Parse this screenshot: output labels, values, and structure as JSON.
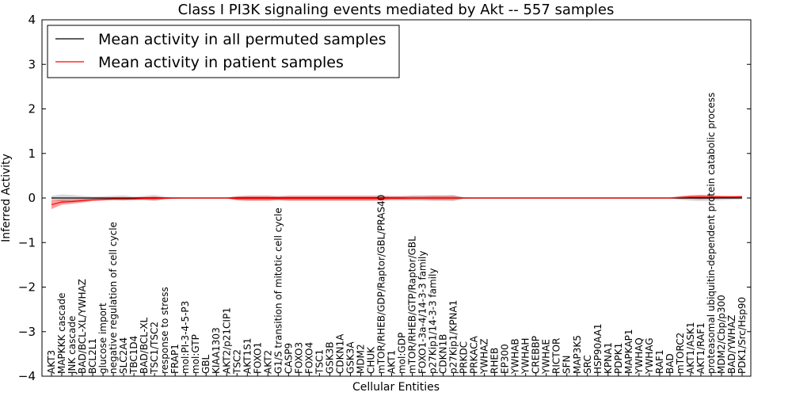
{
  "chart_data": {
    "type": "line",
    "title": "Class I PI3K signaling events mediated by Akt -- 557 samples",
    "xlabel": "Cellular Entities",
    "ylabel": "Inferred Activity",
    "ylim": [
      -4,
      4
    ],
    "yticks": [
      -4,
      -3,
      -2,
      -1,
      0,
      1,
      2,
      3,
      4
    ],
    "grid": false,
    "legend_position": "top-left",
    "categories": [
      "AKT3",
      "MAPKKK cascade",
      "JNK cascade",
      "BAD/BCL-XL/YWHAZ",
      "BCL2L1",
      "glucose import",
      "negative regulation of cell cycle",
      "SLC2A4",
      "TBC1D4",
      "BAD/BCL-XL",
      "TSC1/TSC2",
      "response to stress",
      "FRAP1",
      "mol:PI-3-4-5-P3",
      "mol:GTP",
      "GBL",
      "KIAA1303",
      "AKT2/p21CIP1",
      "TSC2",
      "AKT1S1",
      "FOXO1",
      "AKT2",
      "G1/S transition of mitotic cell cycle",
      "CASP9",
      "FOXO3",
      "FOXO4",
      "TSC1",
      "GSK3B",
      "CDKN1A",
      "GSK3A",
      "MDM2",
      "CHUK",
      "mTOR/RHEB/GDP/Raptor/GBL/PRAS40",
      "AKT1",
      "mol:GDP",
      "mTOR/RHEB/GTP/Raptor/GBL",
      "FOXO1-3a-4/14-3-3 family",
      "p27Kip1/14-3-3 family",
      "CDKN1B",
      "p27Kip1/KPNA1",
      "PRKDC",
      "PRKACA",
      "YWHAZ",
      "RHEB",
      "EP300",
      "YWHAB",
      "YWHAH",
      "CREBBP",
      "YWHAE",
      "RICTOR",
      "SFN",
      "MAP3K5",
      "SRC",
      "HSP90AA1",
      "KPNA1",
      "PDPK1",
      "MAPKAP1",
      "YWHAQ",
      "YWHAG",
      "RAF1",
      "BAD",
      "mTORC2",
      "AKT1/ASK1",
      "AKT1/RAF1",
      "proteasomal ubiquitin-dependent protein catabolic process",
      "MDM2/Cbp/p300",
      "BAD/YWHAZ",
      "PDK1/Src/Hsp90"
    ],
    "series": [
      {
        "name": "Mean activity in all permuted samples",
        "color": "#000000",
        "values": [
          0,
          0,
          0,
          0,
          0,
          0,
          0,
          0,
          0,
          0,
          0,
          0,
          0,
          0,
          0,
          0,
          0,
          0,
          0,
          0,
          0,
          0,
          0,
          0,
          0,
          0,
          0,
          0,
          0,
          0,
          0,
          0,
          0,
          0,
          0,
          0,
          0,
          0,
          0,
          0,
          0,
          0,
          0,
          0,
          0,
          0,
          0,
          0,
          0,
          0,
          0,
          0,
          0,
          0,
          0,
          0,
          0,
          0,
          0,
          0,
          0,
          0,
          0,
          0,
          0,
          0,
          0,
          0
        ],
        "band": [
          0.05,
          0.08,
          0.07,
          0.05,
          0.03,
          0.04,
          0.05,
          0.06,
          0.03,
          0.05,
          0.07,
          0.03,
          0.02,
          0.01,
          0.01,
          0.01,
          0.01,
          0.01,
          0.05,
          0.06,
          0.06,
          0.06,
          0.05,
          0.06,
          0.06,
          0.06,
          0.06,
          0.06,
          0.06,
          0.06,
          0.06,
          0.06,
          0.06,
          0.05,
          0.05,
          0.06,
          0.06,
          0.06,
          0.06,
          0.07,
          0.02,
          0.01,
          0.01,
          0.01,
          0.01,
          0.01,
          0.01,
          0.01,
          0.01,
          0.01,
          0.01,
          0.01,
          0.01,
          0.01,
          0.01,
          0.01,
          0.01,
          0.01,
          0.01,
          0.01,
          0.01,
          0.04,
          0.06,
          0.07,
          0.06,
          0.05,
          0.04,
          0.03
        ]
      },
      {
        "name": "Mean activity in patient samples",
        "color": "#ff0000",
        "values": [
          -0.15,
          -0.09,
          -0.08,
          -0.06,
          -0.04,
          -0.03,
          -0.02,
          -0.02,
          -0.02,
          -0.01,
          -0.01,
          -0.005,
          0,
          0,
          0,
          0,
          0,
          0,
          -0.01,
          -0.01,
          -0.01,
          -0.01,
          -0.01,
          -0.01,
          -0.01,
          -0.01,
          -0.01,
          -0.01,
          -0.01,
          -0.01,
          -0.01,
          -0.01,
          -0.01,
          -0.005,
          -0.005,
          0,
          0,
          0,
          0,
          0,
          0,
          0,
          0,
          0,
          0,
          0,
          0,
          0,
          0,
          0,
          0,
          0,
          0,
          0,
          0,
          0,
          0,
          0,
          0,
          0,
          0,
          0.01,
          0.02,
          0.02,
          0.02,
          0.02,
          0.02,
          0.03
        ],
        "band": [
          0.1,
          0.06,
          0.05,
          0.04,
          0.03,
          0.03,
          0.03,
          0.03,
          0.03,
          0.03,
          0.04,
          0.02,
          0.01,
          0.01,
          0.01,
          0.01,
          0.01,
          0.01,
          0.04,
          0.05,
          0.05,
          0.05,
          0.04,
          0.05,
          0.05,
          0.05,
          0.05,
          0.05,
          0.05,
          0.05,
          0.05,
          0.05,
          0.05,
          0.04,
          0.04,
          0.04,
          0.04,
          0.05,
          0.05,
          0.05,
          0.01,
          0.01,
          0.01,
          0.01,
          0.01,
          0.01,
          0.01,
          0.01,
          0.01,
          0.01,
          0.01,
          0.01,
          0.01,
          0.01,
          0.01,
          0.01,
          0.01,
          0.01,
          0.01,
          0.01,
          0.01,
          0.03,
          0.04,
          0.05,
          0.04,
          0.03,
          0.03,
          0.02
        ]
      }
    ]
  }
}
